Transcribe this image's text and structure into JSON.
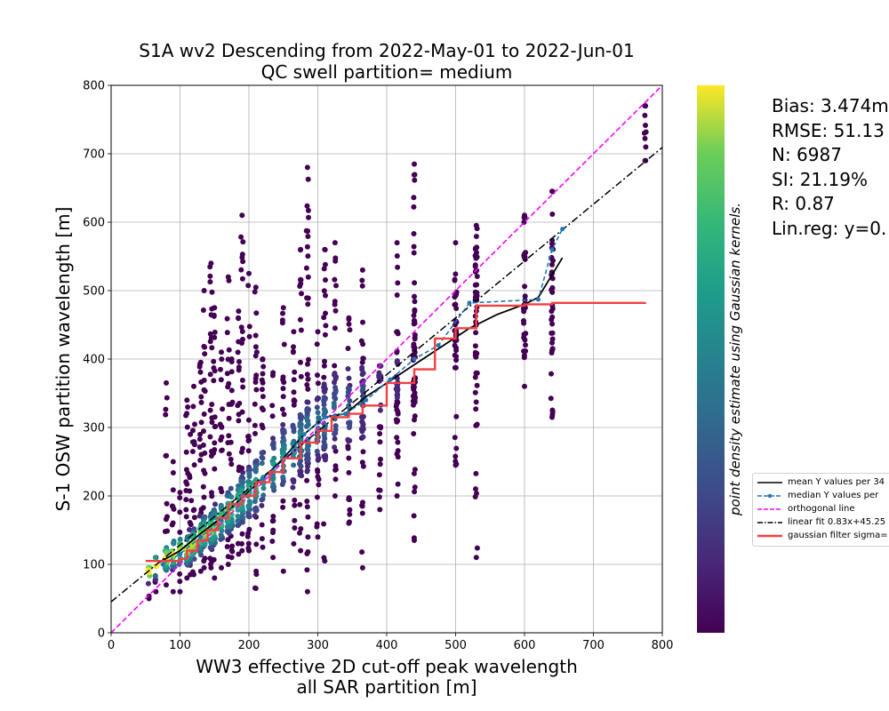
{
  "chart_data": {
    "type": "scatter",
    "title": "S1A wv2 Descending from 2022-May-01 to 2022-Jun-01",
    "subtitle": "QC swell partition= medium",
    "xlabel": "WW3 effective 2D cut-off peak wavelength",
    "xlabel_line2": "all SAR partition [m]",
    "ylabel": "S-1 OSW partition wavelength [m]",
    "colorbar_label": "point density estimate using Gaussian kernels.",
    "colormap": "viridis",
    "xlim": [
      0,
      800
    ],
    "ylim": [
      0,
      800
    ],
    "xticks": [
      "0",
      "100",
      "200",
      "300",
      "400",
      "500",
      "600",
      "700",
      "800"
    ],
    "yticks": [
      "0",
      "100",
      "200",
      "300",
      "400",
      "500",
      "600",
      "700",
      "800"
    ],
    "grid": true,
    "legend_position": "right",
    "stats": [
      "Bias: 3.474m",
      "RMSE: 51.13",
      "N: 6987",
      "SI: 21.19%",
      "R: 0.87",
      "Lin.reg: y=0."
    ],
    "legend": [
      {
        "label": "mean Y values per 34",
        "color": "#000000",
        "style": "solid"
      },
      {
        "label": "median Y values per",
        "color": "#1f77b4",
        "style": "dashed-marker"
      },
      {
        "label": "orthogonal line",
        "color": "#ff00ff",
        "style": "dashed"
      },
      {
        "label": "linear fit 0.83x+45.25",
        "color": "#000000",
        "style": "dashdot"
      },
      {
        "label": "gaussian filter sigma=",
        "color": "#f04040",
        "style": "solid-thick"
      }
    ],
    "series": [
      {
        "name": "orthogonal line",
        "type": "line",
        "color": "#ff00ff",
        "x": [
          0,
          800
        ],
        "y": [
          0,
          800
        ]
      },
      {
        "name": "linear fit 0.83x+45.25",
        "type": "line",
        "color": "#000000",
        "x": [
          0,
          800
        ],
        "y": [
          45.25,
          709.25
        ]
      },
      {
        "name": "mean Y values per 34",
        "type": "line",
        "color": "#000000",
        "x": [
          70,
          100,
          130,
          160,
          190,
          220,
          250,
          280,
          310,
          340,
          370,
          400,
          430,
          460,
          490,
          520,
          560,
          600,
          620,
          655
        ],
        "y": [
          103,
          120,
          145,
          168,
          198,
          225,
          255,
          290,
          315,
          320,
          345,
          365,
          385,
          405,
          425,
          445,
          465,
          480,
          490,
          548
        ]
      },
      {
        "name": "median Y values per",
        "type": "line",
        "color": "#1f77b4",
        "x": [
          75,
          100,
          130,
          160,
          190,
          220,
          250,
          280,
          310,
          340,
          370,
          405,
          440,
          475,
          520,
          620,
          640,
          655
        ],
        "y": [
          100,
          115,
          140,
          165,
          200,
          225,
          252,
          290,
          315,
          320,
          340,
          370,
          400,
          420,
          482,
          487,
          560,
          590
        ]
      },
      {
        "name": "gaussian filter sigma=",
        "type": "step",
        "color": "#f04040",
        "x": [
          50,
          75,
          100,
          110,
          125,
          140,
          155,
          170,
          190,
          210,
          230,
          250,
          275,
          300,
          320,
          345,
          365,
          400,
          440,
          470,
          500,
          530,
          600,
          640,
          775
        ],
        "y": [
          105,
          105,
          108,
          120,
          135,
          150,
          168,
          188,
          200,
          220,
          235,
          255,
          278,
          295,
          315,
          320,
          332,
          365,
          385,
          430,
          445,
          478,
          480,
          482,
          483
        ]
      }
    ],
    "density_columns": [
      {
        "x": 55,
        "ymin": 50,
        "ymax": 95,
        "peak": 90
      },
      {
        "x": 65,
        "ymin": 60,
        "ymax": 110,
        "peak": 100
      },
      {
        "x": 80,
        "ymin": 70,
        "ymax": 365,
        "peak": 110
      },
      {
        "x": 90,
        "ymin": 60,
        "ymax": 250,
        "peak": 115
      },
      {
        "x": 100,
        "ymin": 60,
        "ymax": 205,
        "peak": 120
      },
      {
        "x": 110,
        "ymin": 80,
        "ymax": 340,
        "peak": 120
      },
      {
        "x": 115,
        "ymin": 85,
        "ymax": 290,
        "peak": 125
      },
      {
        "x": 120,
        "ymin": 85,
        "ymax": 360,
        "peak": 130
      },
      {
        "x": 130,
        "ymin": 90,
        "ymax": 395,
        "peak": 140
      },
      {
        "x": 135,
        "ymin": 95,
        "ymax": 500,
        "peak": 145
      },
      {
        "x": 145,
        "ymin": 95,
        "ymax": 540,
        "peak": 150
      },
      {
        "x": 150,
        "ymin": 80,
        "ymax": 475,
        "peak": 155
      },
      {
        "x": 160,
        "ymin": 95,
        "ymax": 410,
        "peak": 165
      },
      {
        "x": 170,
        "ymin": 100,
        "ymax": 520,
        "peak": 175
      },
      {
        "x": 175,
        "ymin": 110,
        "ymax": 400,
        "peak": 180
      },
      {
        "x": 185,
        "ymin": 115,
        "ymax": 470,
        "peak": 190
      },
      {
        "x": 190,
        "ymin": 120,
        "ymax": 610,
        "peak": 195
      },
      {
        "x": 200,
        "ymin": 120,
        "ymax": 525,
        "peak": 205
      },
      {
        "x": 210,
        "ymin": 65,
        "ymax": 505,
        "peak": 215
      },
      {
        "x": 220,
        "ymin": 125,
        "ymax": 400,
        "peak": 225
      },
      {
        "x": 235,
        "ymin": 110,
        "ymax": 380,
        "peak": 240
      },
      {
        "x": 250,
        "ymin": 90,
        "ymax": 475,
        "peak": 255
      },
      {
        "x": 265,
        "ymin": 130,
        "ymax": 440,
        "peak": 265
      },
      {
        "x": 275,
        "ymin": 120,
        "ymax": 560,
        "peak": 280
      },
      {
        "x": 285,
        "ymin": 60,
        "ymax": 680,
        "peak": 290
      },
      {
        "x": 300,
        "ymin": 140,
        "ymax": 440,
        "peak": 300
      },
      {
        "x": 310,
        "ymin": 105,
        "ymax": 560,
        "peak": 310
      },
      {
        "x": 325,
        "ymin": 200,
        "ymax": 570,
        "peak": 325
      },
      {
        "x": 345,
        "ymin": 160,
        "ymax": 460,
        "peak": 330
      },
      {
        "x": 365,
        "ymin": 95,
        "ymax": 530,
        "peak": 340
      },
      {
        "x": 390,
        "ymin": 180,
        "ymax": 390,
        "peak": 360
      },
      {
        "x": 415,
        "ymin": 200,
        "ymax": 570,
        "peak": 375
      },
      {
        "x": 440,
        "ymin": 135,
        "ymax": 685,
        "peak": 400
      },
      {
        "x": 500,
        "ymin": 245,
        "ymax": 570,
        "peak": 440
      },
      {
        "x": 530,
        "ymin": 110,
        "ymax": 595,
        "peak": 480
      },
      {
        "x": 600,
        "ymin": 360,
        "ymax": 610,
        "peak": 490
      },
      {
        "x": 640,
        "ymin": 315,
        "ymax": 645,
        "peak": 500
      },
      {
        "x": 775,
        "ymin": 690,
        "ymax": 770,
        "peak": 730
      }
    ]
  }
}
